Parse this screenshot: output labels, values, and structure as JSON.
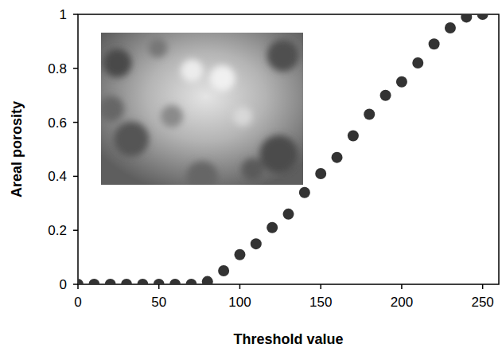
{
  "chart_data": {
    "type": "scatter",
    "xlabel": "Threshold value",
    "ylabel": "Areal porosity",
    "x": [
      0,
      10,
      20,
      30,
      40,
      50,
      60,
      70,
      80,
      90,
      100,
      110,
      120,
      130,
      140,
      150,
      160,
      170,
      180,
      190,
      200,
      210,
      220,
      230,
      240,
      250
    ],
    "values": [
      0,
      0,
      0,
      0,
      0,
      0,
      0,
      0,
      0.01,
      0.05,
      0.11,
      0.15,
      0.21,
      0.26,
      0.34,
      0.41,
      0.47,
      0.55,
      0.63,
      0.7,
      0.75,
      0.82,
      0.89,
      0.95,
      0.99,
      1.0
    ],
    "color": "#333333",
    "marker": "circle",
    "xlim": [
      0,
      260
    ],
    "ylim": [
      0,
      1
    ],
    "xticks": [
      0,
      50,
      100,
      150,
      200,
      250
    ],
    "yticks": [
      0,
      0.2,
      0.4,
      0.6,
      0.8,
      1
    ],
    "grid": false
  }
}
